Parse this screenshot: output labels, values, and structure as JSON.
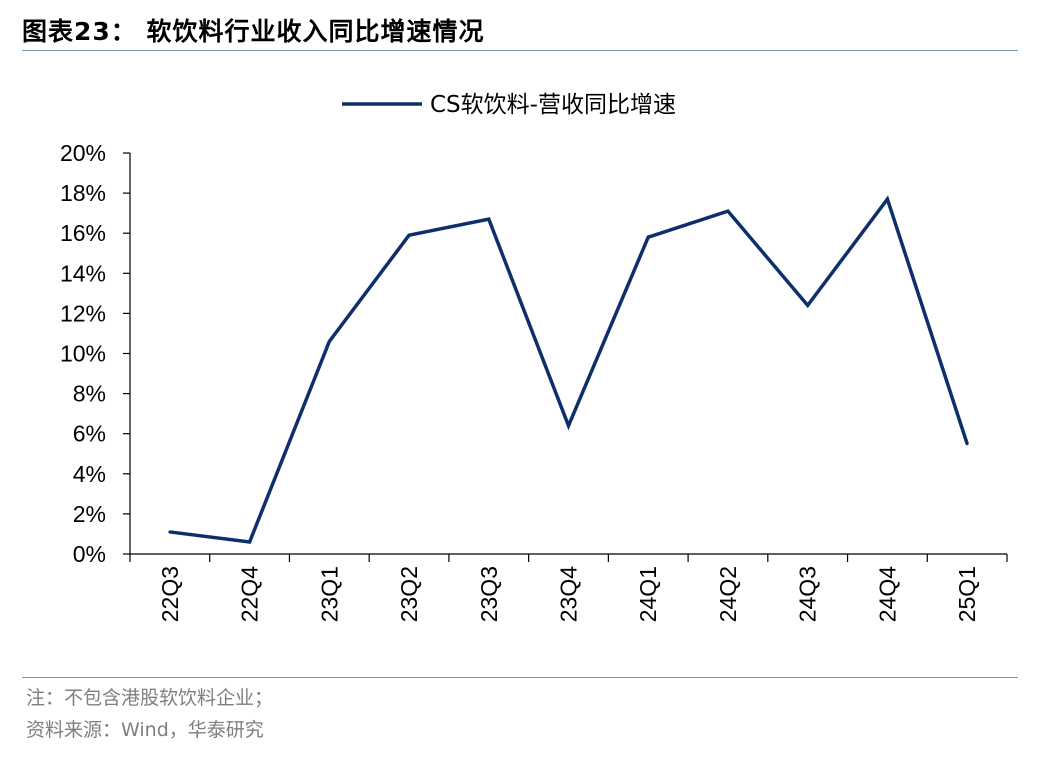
{
  "figure_title": "图表23：  软饮料行业收入同比增速情况",
  "footer": {
    "note": "注：不包含港股软饮料企业；",
    "source": "资料来源：Wind，华泰研究"
  },
  "colors": {
    "line": "#0d2f6b",
    "axis": "#000000",
    "rule": "#7f99b2",
    "footer_text": "#7f7f7f"
  },
  "chart_data": {
    "type": "line",
    "categories": [
      "22Q3",
      "22Q4",
      "23Q1",
      "23Q2",
      "23Q3",
      "23Q4",
      "24Q1",
      "24Q2",
      "24Q3",
      "24Q4",
      "25Q1"
    ],
    "series": [
      {
        "name": "CS软饮料-营收同比增速",
        "values": [
          1.1,
          0.6,
          10.6,
          15.9,
          16.7,
          6.4,
          15.8,
          17.1,
          12.4,
          17.7,
          5.5
        ]
      }
    ],
    "yticks": [
      "0%",
      "2%",
      "4%",
      "6%",
      "8%",
      "10%",
      "12%",
      "14%",
      "16%",
      "18%",
      "20%"
    ],
    "ylim": [
      0,
      20
    ],
    "grid": false,
    "legend_position": "top-center",
    "xlabel": "",
    "ylabel": ""
  }
}
